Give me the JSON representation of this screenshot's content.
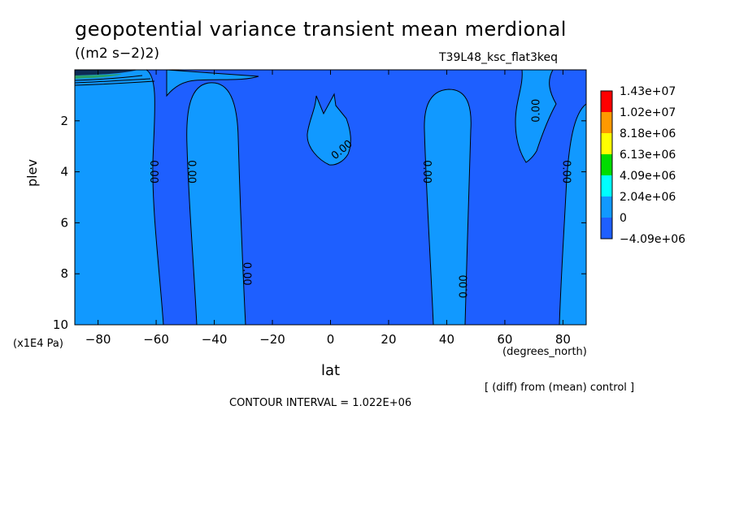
{
  "chart_data": {
    "type": "contour",
    "title": "geopotential variance transient mean merdional",
    "units": "((m2 s−2)2)",
    "run_name": "T39L48_ksc_flat3keq",
    "xlabel": "lat",
    "x_units": "(degrees_north)",
    "ylabel": "plev",
    "y_units": "(x1E4 Pa)",
    "xlim": [
      -88,
      88
    ],
    "ylim": [
      0,
      10
    ],
    "y_inverted": true,
    "x_ticks": [
      -80,
      -60,
      -40,
      -20,
      0,
      20,
      40,
      60,
      80
    ],
    "x_tick_labels": [
      "−80",
      "−60",
      "−40",
      "−20",
      "0",
      "20",
      "40",
      "60",
      "80"
    ],
    "y_ticks": [
      2,
      4,
      6,
      8,
      10
    ],
    "y_tick_labels": [
      "2",
      "4",
      "6",
      "8",
      "10"
    ],
    "contour_interval_text": "CONTOUR INTERVAL = 1.022E+06",
    "note": "[ (diff) from (mean) control ]",
    "contour_label": "0.00",
    "legend": {
      "levels": [
        "1.43e+07",
        "1.02e+07",
        "8.18e+06",
        "6.13e+06",
        "4.09e+06",
        "2.04e+06",
        "0",
        "−4.09e+06"
      ],
      "colors": [
        "#ff0000",
        "#ff9900",
        "#ffff00",
        "#00dd00",
        "#00ffff",
        "#1199ff",
        "#1e5fff",
        "#1e5fff"
      ]
    },
    "regions": [
      {
        "name": "positive band near 58S",
        "sign": "positive",
        "lat_range": [
          -63,
          -57
        ]
      },
      {
        "name": "positive band near 38S",
        "sign": "positive",
        "lat_range": [
          -47,
          -30
        ]
      },
      {
        "name": "positive cell near equator upper levels",
        "sign": "positive",
        "lat_range": [
          -7,
          5
        ],
        "plev_range": [
          0.6,
          3.8
        ]
      },
      {
        "name": "positive band near 40N",
        "sign": "positive",
        "lat_range": [
          33,
          46
        ]
      },
      {
        "name": "positive patch near 70N upper levels",
        "sign": "positive",
        "lat_range": [
          64,
          80
        ],
        "plev_range": [
          0,
          3.7
        ]
      },
      {
        "name": "positive band near poleward edge",
        "sign": "positive",
        "lat_range": [
          80,
          88
        ]
      }
    ],
    "colors": {
      "negative_fill": "#1e5fff",
      "positive_fill": "#1199ff",
      "contour_line": "#000000"
    }
  }
}
